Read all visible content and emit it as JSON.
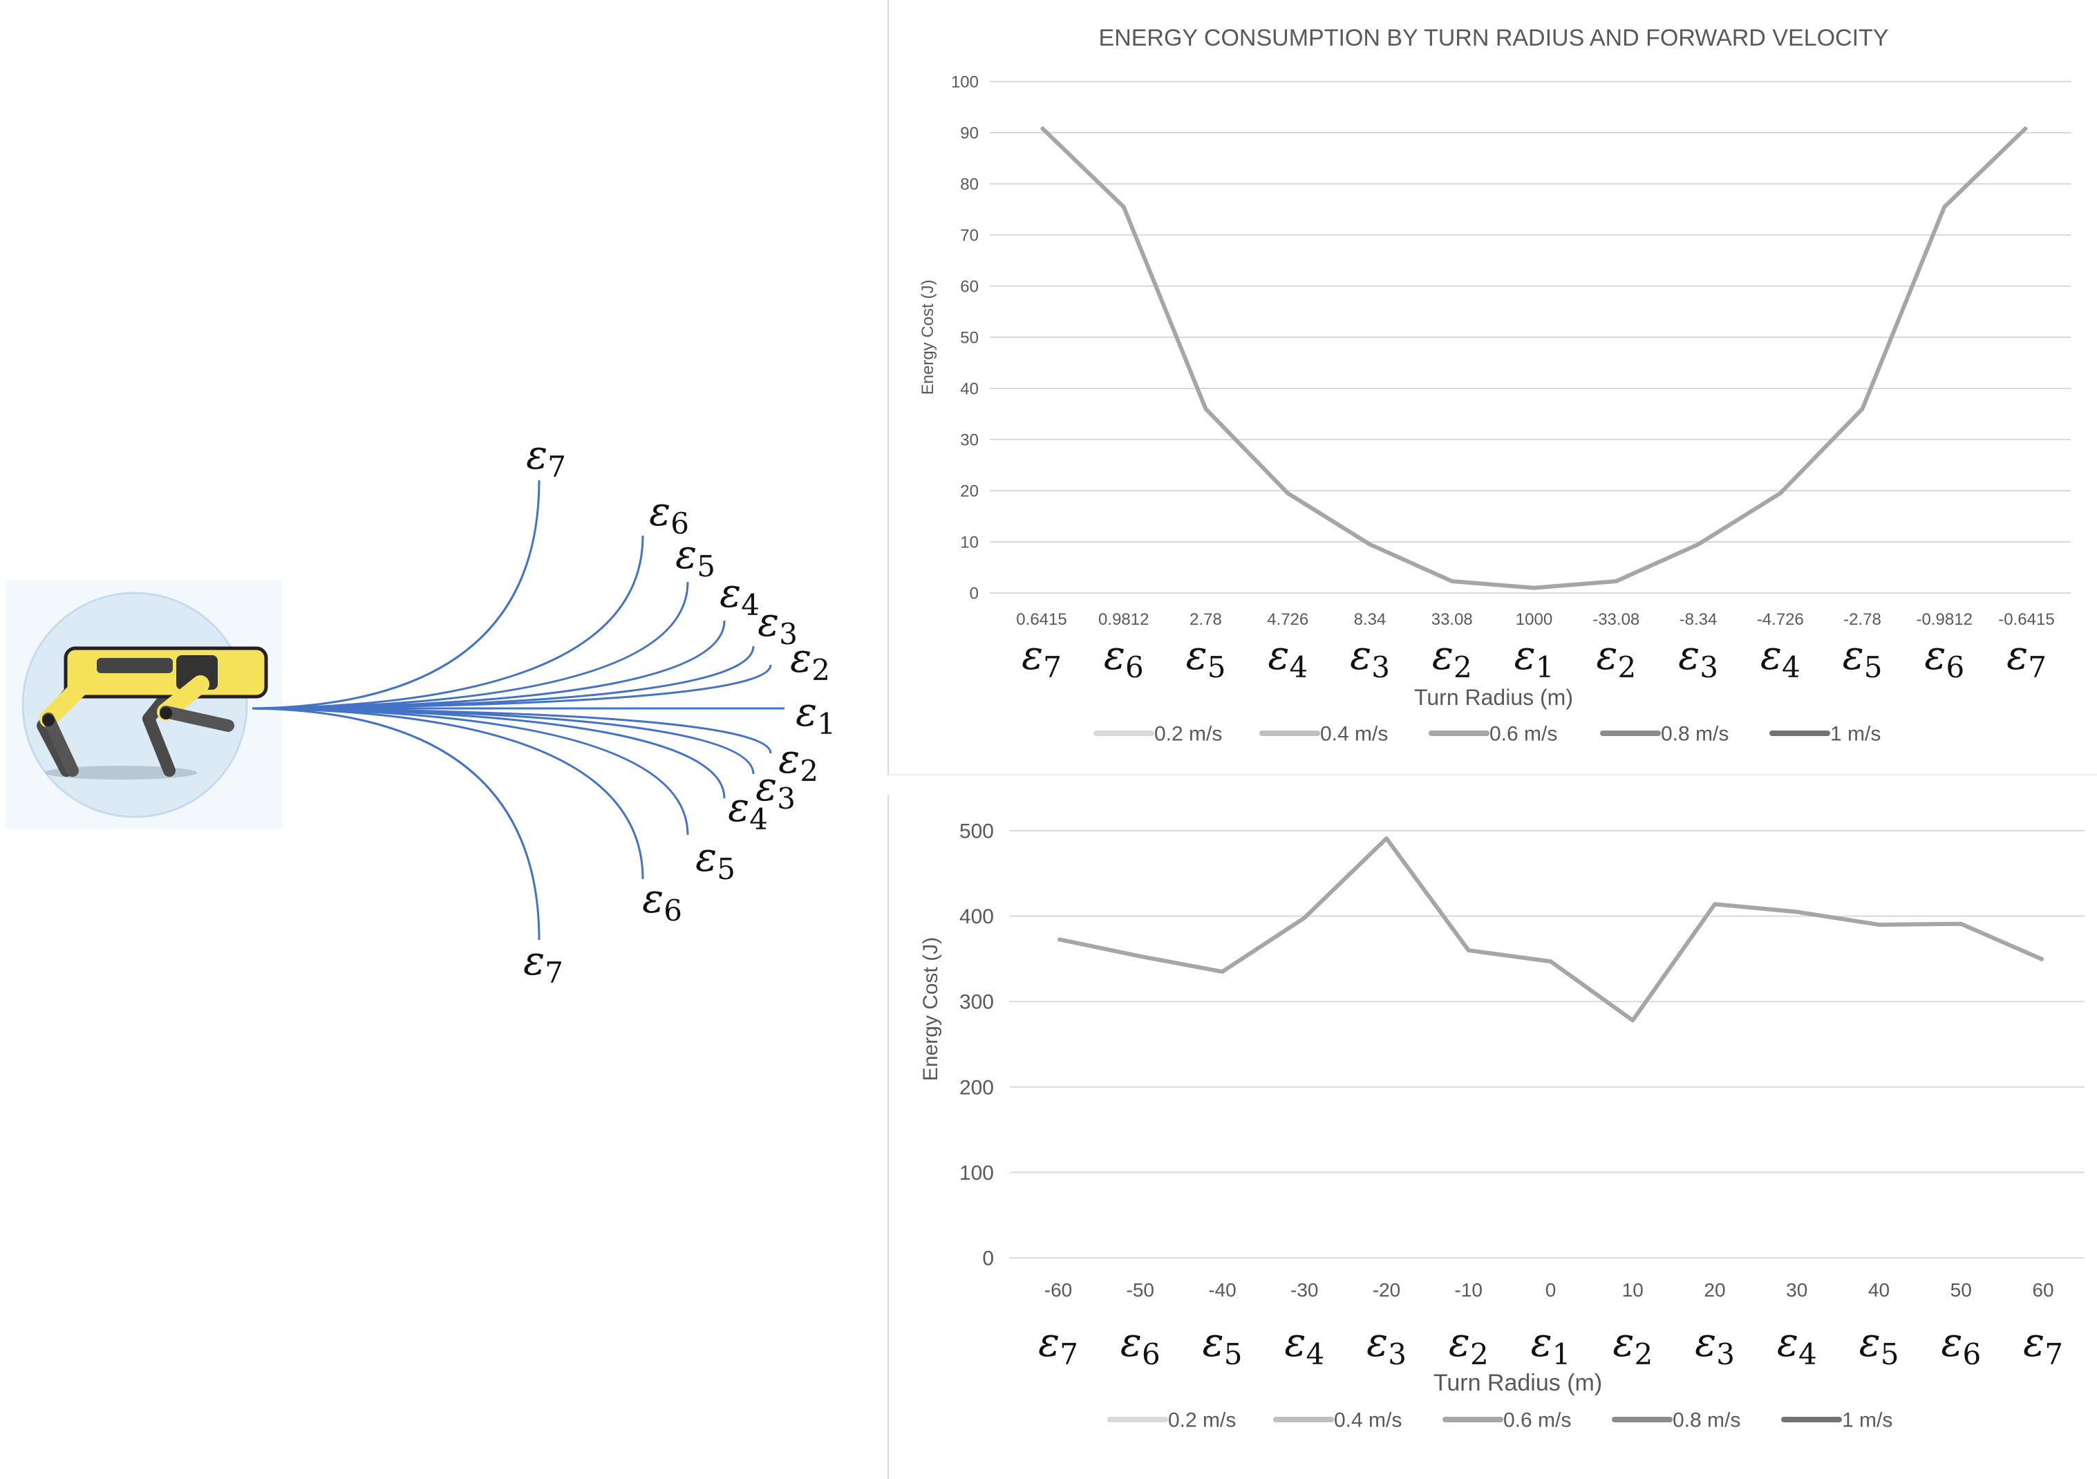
{
  "trajectory_figure": {
    "robot_icon": "quadruped-robot-icon",
    "upper_labels": [
      "ε7",
      "ε6",
      "ε5",
      "ε4",
      "ε3",
      "ε2"
    ],
    "center_label": "ε1",
    "lower_labels": [
      "ε2",
      "ε3",
      "ε4",
      "ε5",
      "ε6",
      "ε7"
    ],
    "path_color": "#4472c4"
  },
  "chart_data": [
    {
      "type": "line",
      "title": "ENERGY CONSUMPTION BY TURN RADIUS AND FORWARD VELOCITY",
      "xlabel": "Turn Radius (m)",
      "ylabel": "Energy Cost (J)",
      "categories": [
        "0.6415",
        "0.9812",
        "2.78",
        "4.726",
        "8.34",
        "33.08",
        "1000",
        "-33.08",
        "-8.34",
        "-4.726",
        "-2.78",
        "-0.9812",
        "-0.6415"
      ],
      "category_symbols": [
        "ε7",
        "ε6",
        "ε5",
        "ε4",
        "ε3",
        "ε2",
        "ε1",
        "ε2",
        "ε3",
        "ε4",
        "ε5",
        "ε6",
        "ε7"
      ],
      "ylim": [
        0,
        100
      ],
      "yticks": [
        "0",
        "10",
        "20",
        "30",
        "40",
        "50",
        "60",
        "70",
        "80",
        "90",
        "100"
      ],
      "grid": true,
      "legend_position": "bottom",
      "legend": [
        "0.2 m/s",
        "0.4 m/s",
        "0.6 m/s",
        "0.8 m/s",
        "1 m/s"
      ],
      "legend_colors": [
        "#d9d9d9",
        "#bfbfbf",
        "#a6a6a6",
        "#8c8c8c",
        "#737373"
      ],
      "series": [
        {
          "name": "0.6 m/s",
          "color": "#a6a6a6",
          "values": [
            91,
            75.5,
            36,
            19.5,
            9.5,
            2.3,
            1,
            2.3,
            9.5,
            19.5,
            36,
            75.5,
            91
          ]
        }
      ]
    },
    {
      "type": "line",
      "title": "",
      "xlabel": "Turn Radius (m)",
      "ylabel": "Energy Cost (J)",
      "categories": [
        "-60",
        "-50",
        "-40",
        "-30",
        "-20",
        "-10",
        "0",
        "10",
        "20",
        "30",
        "40",
        "50",
        "60"
      ],
      "category_symbols": [
        "ε7",
        "ε6",
        "ε5",
        "ε4",
        "ε3",
        "ε2",
        "ε1",
        "ε2",
        "ε3",
        "ε4",
        "ε5",
        "ε6",
        "ε7"
      ],
      "ylim": [
        0,
        500
      ],
      "yticks": [
        "0",
        "100",
        "200",
        "300",
        "400",
        "500"
      ],
      "grid": true,
      "legend_position": "bottom",
      "legend": [
        "0.2 m/s",
        "0.4 m/s",
        "0.6 m/s",
        "0.8 m/s",
        "1 m/s"
      ],
      "legend_colors": [
        "#d9d9d9",
        "#bfbfbf",
        "#a6a6a6",
        "#8c8c8c",
        "#737373"
      ],
      "series": [
        {
          "name": "0.6 m/s",
          "color": "#a6a6a6",
          "values": [
            373,
            353,
            335,
            398,
            491,
            360,
            347,
            278,
            414,
            405,
            390,
            391,
            349
          ]
        }
      ]
    }
  ]
}
